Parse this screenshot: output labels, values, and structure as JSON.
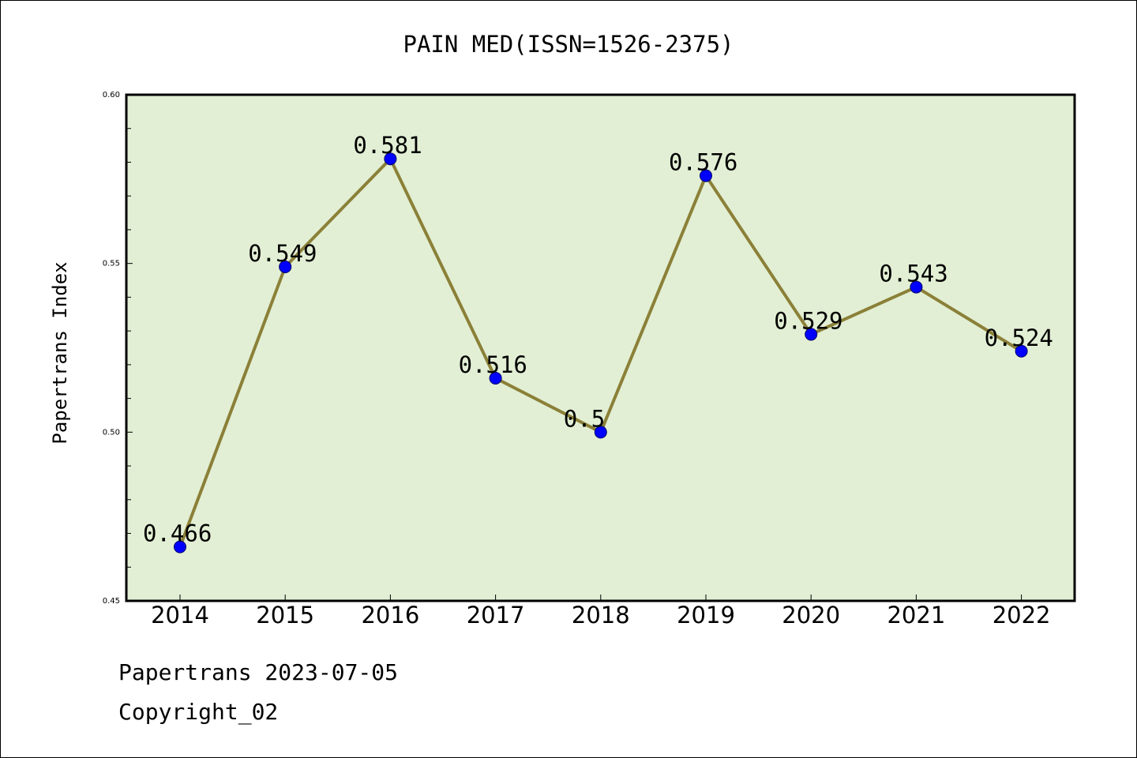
{
  "chart_data": {
    "type": "line",
    "title": "PAIN MED(ISSN=1526-2375)",
    "xlabel": "",
    "ylabel": "Papertrans Index",
    "x": [
      "2014",
      "2015",
      "2016",
      "2017",
      "2018",
      "2019",
      "2020",
      "2021",
      "2022"
    ],
    "values": [
      0.466,
      0.549,
      0.581,
      0.516,
      0.5,
      0.576,
      0.529,
      0.543,
      0.524
    ],
    "data_labels": [
      "0.466",
      "0.549",
      "0.581",
      "0.516",
      "0.5",
      "0.576",
      "0.529",
      "0.543",
      "0.524"
    ],
    "ylim": [
      0.45,
      0.6
    ],
    "y_ticks": [
      0.45,
      0.5,
      0.55,
      0.6
    ],
    "y_tick_labels": [
      "0.45",
      "0.50",
      "0.55",
      "0.60"
    ],
    "y_minor_step": 0.01,
    "grid": false,
    "colors": {
      "plot_background": "#e2efd4",
      "line": "#8b8038",
      "marker": "#0000ff"
    }
  },
  "footer": {
    "source": "Papertrans 2023-07-05",
    "copyright": "Copyright_02"
  }
}
